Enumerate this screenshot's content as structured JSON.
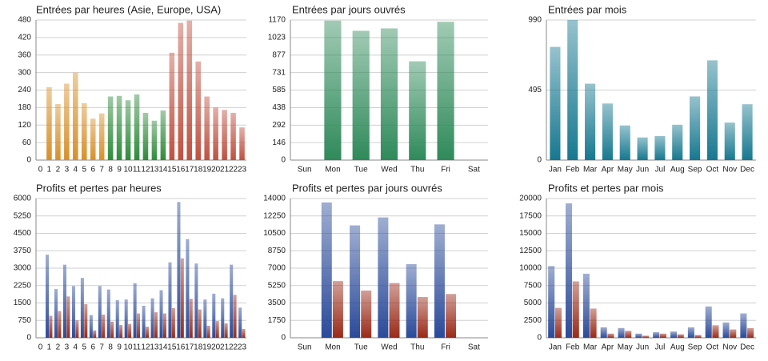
{
  "chart_data": [
    {
      "type": "bar",
      "title": "Entrées par heures (Asie, Europe, USA)",
      "categories": [
        "0",
        "1",
        "2",
        "3",
        "4",
        "5",
        "6",
        "7",
        "8",
        "9",
        "10",
        "11",
        "12",
        "13",
        "14",
        "15",
        "16",
        "17",
        "18",
        "19",
        "20",
        "21",
        "22",
        "23"
      ],
      "values": [
        0,
        250,
        192,
        262,
        300,
        195,
        142,
        160,
        218,
        220,
        205,
        225,
        162,
        135,
        170,
        368,
        470,
        478,
        338,
        218,
        180,
        172,
        162,
        112
      ],
      "colors": [
        "#d8902a",
        "#d8902a",
        "#d8902a",
        "#d8902a",
        "#d8902a",
        "#d8902a",
        "#d8902a",
        "#d8902a",
        "#2e8b3a",
        "#2e8b3a",
        "#2e8b3a",
        "#2e8b3a",
        "#2e8b3a",
        "#2e8b3a",
        "#2e8b3a",
        "#c05040",
        "#c05040",
        "#c05040",
        "#c05040",
        "#c05040",
        "#c05040",
        "#c05040",
        "#c05040",
        "#c05040"
      ],
      "ylim": [
        0,
        480
      ],
      "yticks": [
        0,
        60,
        120,
        180,
        240,
        300,
        360,
        420,
        480
      ],
      "grid": true
    },
    {
      "type": "bar",
      "title": "Entrées par jours ouvrés",
      "categories": [
        "Sun",
        "Mon",
        "Tue",
        "Wed",
        "Thu",
        "Fri",
        "Sat"
      ],
      "values": [
        0,
        1165,
        1080,
        1100,
        825,
        1155,
        0
      ],
      "color": "#2f8a5a",
      "ylim": [
        0,
        1170
      ],
      "yticks": [
        0,
        146,
        292,
        438,
        585,
        731,
        877,
        1023,
        1170
      ],
      "grid": true
    },
    {
      "type": "bar",
      "title": "Entrées par mois",
      "categories": [
        "Jan",
        "Feb",
        "Mar",
        "Apr",
        "May",
        "Jun",
        "Jul",
        "Aug",
        "Sep",
        "Oct",
        "Nov",
        "Dec"
      ],
      "values": [
        800,
        990,
        540,
        400,
        245,
        160,
        170,
        250,
        450,
        705,
        265,
        395
      ],
      "color": "#167890",
      "ylim": [
        0,
        990
      ],
      "yticks": [
        0,
        495,
        990
      ],
      "grid": true
    },
    {
      "type": "bar",
      "title": "Profits et pertes par heures",
      "categories": [
        "0",
        "1",
        "2",
        "3",
        "4",
        "5",
        "6",
        "7",
        "8",
        "9",
        "10",
        "11",
        "12",
        "13",
        "14",
        "15",
        "16",
        "17",
        "18",
        "19",
        "20",
        "21",
        "22",
        "23"
      ],
      "series": [
        {
          "color": "#2a4a9a",
          "values": [
            0,
            3580,
            2100,
            3150,
            2230,
            2580,
            980,
            2230,
            2080,
            1620,
            1650,
            2350,
            1380,
            1700,
            2050,
            3250,
            5850,
            4250,
            3200,
            1650,
            1900,
            1700,
            3150,
            1300
          ]
        },
        {
          "color": "#9a2a18",
          "values": [
            0,
            950,
            1150,
            1780,
            750,
            1450,
            320,
            1000,
            700,
            550,
            600,
            1050,
            480,
            1100,
            1050,
            1280,
            3420,
            1680,
            1220,
            520,
            720,
            620,
            1850,
            380
          ]
        }
      ],
      "ylim": [
        0,
        6000
      ],
      "yticks": [
        0,
        750,
        1500,
        2250,
        3000,
        3750,
        4500,
        5250,
        6000
      ],
      "grid": true
    },
    {
      "type": "bar",
      "title": "Profits et pertes par jours ouvrés",
      "categories": [
        "Sun",
        "Mon",
        "Tue",
        "Wed",
        "Thu",
        "Fri",
        "Sat"
      ],
      "series": [
        {
          "color": "#2a4a9a",
          "values": [
            0,
            13600,
            11300,
            12100,
            7400,
            11400,
            0
          ]
        },
        {
          "color": "#9a2a18",
          "values": [
            0,
            5700,
            4750,
            5500,
            4100,
            4400,
            0
          ]
        }
      ],
      "ylim": [
        0,
        14000
      ],
      "yticks": [
        0,
        1750,
        3500,
        5250,
        7000,
        8750,
        10500,
        12250,
        14000
      ],
      "grid": true
    },
    {
      "type": "bar",
      "title": "Profits et pertes par mois",
      "categories": [
        "Jan",
        "Feb",
        "Mar",
        "Apr",
        "May",
        "Jun",
        "Jul",
        "Aug",
        "Sep",
        "Oct",
        "Nov",
        "Dec"
      ],
      "series": [
        {
          "color": "#2a4a9a",
          "values": [
            10300,
            19300,
            9200,
            1500,
            1400,
            600,
            800,
            900,
            1500,
            4500,
            2200,
            3500
          ]
        },
        {
          "color": "#9a2a18",
          "values": [
            4300,
            8100,
            4200,
            600,
            1000,
            300,
            600,
            500,
            400,
            1800,
            1200,
            1400
          ]
        }
      ],
      "ylim": [
        0,
        20000
      ],
      "yticks": [
        0,
        2500,
        5000,
        7500,
        10000,
        12500,
        15000,
        17500,
        20000
      ],
      "grid": true
    }
  ]
}
